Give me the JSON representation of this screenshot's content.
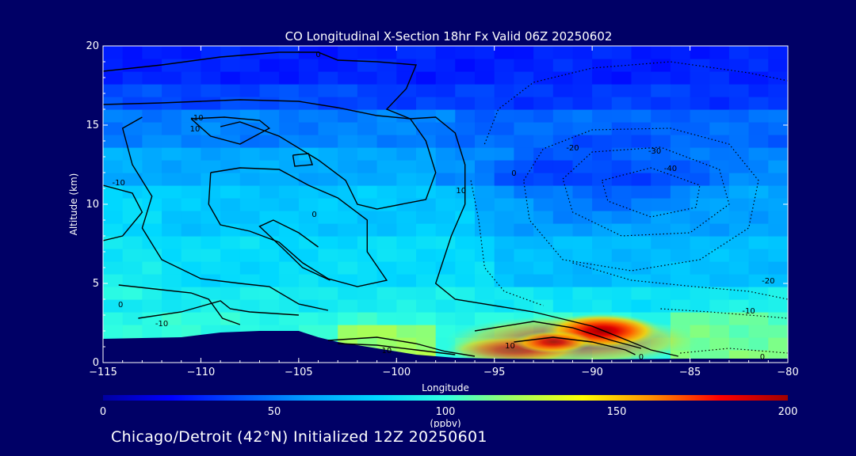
{
  "chart_data": {
    "type": "heatmap",
    "title": "CO Longitudinal X-Section 18hr  Fx Valid 06Z 20250602",
    "xlabel": "Longitude",
    "ylabel": "Altitude (km)",
    "xlim": [
      -115,
      -80
    ],
    "ylim": [
      0,
      20
    ],
    "x_ticks": [
      "−115",
      "−110",
      "−105",
      "−100",
      "−95",
      "−90",
      "−85",
      "−80"
    ],
    "y_ticks": [
      "0",
      "5",
      "10",
      "15",
      "20"
    ],
    "colorbar": {
      "label": "(ppbv)",
      "range": [
        0,
        200
      ],
      "ticks": [
        "0",
        "50",
        "100",
        "150",
        "200"
      ]
    },
    "contour_labels": [
      "0",
      "-10",
      "10",
      "0",
      "-10",
      "0",
      "-10",
      "10",
      "0",
      "-20",
      "-30",
      "-40",
      "-20",
      "-10",
      "0",
      "10",
      "10",
      "0"
    ],
    "co_plume_peak": {
      "lon": -89.5,
      "alt": 2.0,
      "value": 195
    },
    "caption": "Chicago/Detroit (42°N) Initialized 12Z 20250601"
  },
  "style": {
    "background": "#000066",
    "terrain": "#000066",
    "colormap": [
      "#0000a0",
      "#0000ff",
      "#0050ff",
      "#00a0ff",
      "#00d8ff",
      "#30ffe0",
      "#a0ff60",
      "#ffff00",
      "#ff9000",
      "#ff0000",
      "#a00000"
    ]
  }
}
